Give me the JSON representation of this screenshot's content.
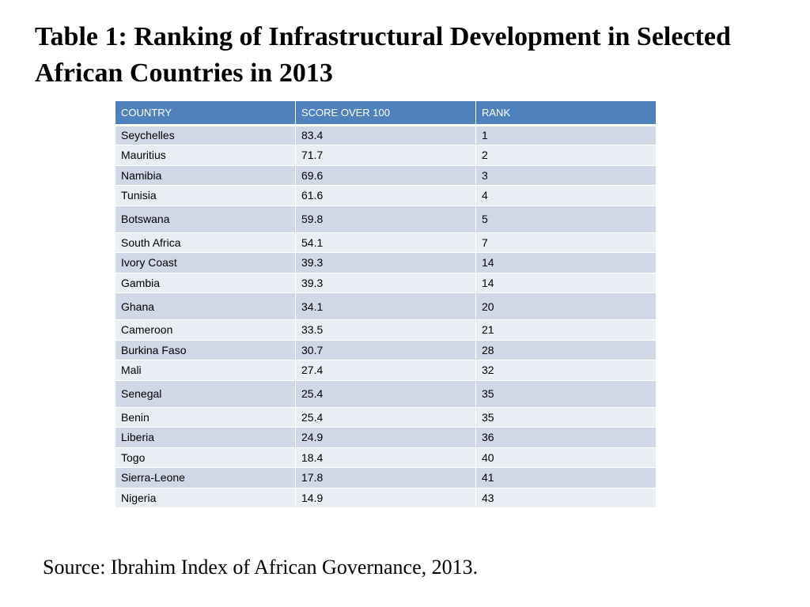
{
  "title": "Table 1: Ranking of Infrastructural Development in Selected African Countries in 2013",
  "table": {
    "headers": [
      "COUNTRY",
      "SCORE OVER 100",
      "RANK"
    ],
    "rows": [
      [
        "Seychelles",
        "83.4",
        "1"
      ],
      [
        "Mauritius",
        "71.7",
        "2"
      ],
      [
        "Namibia",
        "69.6",
        "3"
      ],
      [
        "Tunisia",
        "61.6",
        "4"
      ],
      [
        "Botswana",
        "59.8",
        "5"
      ],
      [
        "South Africa",
        "54.1",
        "7"
      ],
      [
        "Ivory Coast",
        "39.3",
        "14"
      ],
      [
        "Gambia",
        "39.3",
        "14"
      ],
      [
        "Ghana",
        "34.1",
        "20"
      ],
      [
        "Cameroon",
        "33.5",
        "21"
      ],
      [
        "Burkina Faso",
        "30.7",
        "28"
      ],
      [
        "Mali",
        "27.4",
        "32"
      ],
      [
        "Senegal",
        "25.4",
        "35"
      ],
      [
        "Benin",
        "25.4",
        "35"
      ],
      [
        "Liberia",
        "24.9",
        "36"
      ],
      [
        "Togo",
        "18.4",
        "40"
      ],
      [
        "Sierra-Leone",
        "17.8",
        "41"
      ],
      [
        "Nigeria",
        "14.9",
        "43"
      ]
    ]
  },
  "source": "Source: Ibrahim Index of African Governance, 2013.",
  "colors": {
    "header_bg": "#4f81bd",
    "row_odd_bg": "#d0d8e8",
    "row_even_bg": "#e9edf4"
  }
}
